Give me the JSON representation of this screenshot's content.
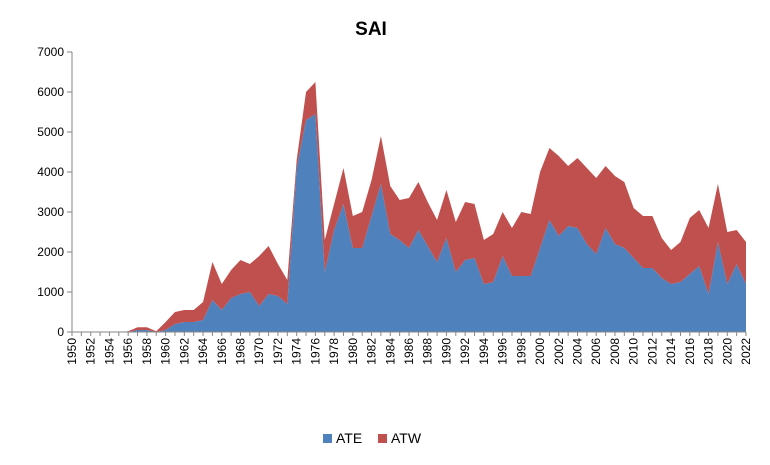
{
  "chart_data": {
    "type": "area",
    "stacked": true,
    "title": "SAI",
    "xlabel": "",
    "ylabel": "",
    "ylim": [
      0,
      7000
    ],
    "yticks": [
      0,
      1000,
      2000,
      3000,
      4000,
      5000,
      6000,
      7000
    ],
    "x": [
      1950,
      1951,
      1952,
      1953,
      1954,
      1955,
      1956,
      1957,
      1958,
      1959,
      1960,
      1961,
      1962,
      1963,
      1964,
      1965,
      1966,
      1967,
      1968,
      1969,
      1970,
      1971,
      1972,
      1973,
      1974,
      1975,
      1976,
      1977,
      1978,
      1979,
      1980,
      1981,
      1982,
      1983,
      1984,
      1985,
      1986,
      1987,
      1988,
      1989,
      1990,
      1991,
      1992,
      1993,
      1994,
      1995,
      1996,
      1997,
      1998,
      1999,
      2000,
      2001,
      2002,
      2003,
      2004,
      2005,
      2006,
      2007,
      2008,
      2009,
      2010,
      2011,
      2012,
      2013,
      2014,
      2015,
      2016,
      2017,
      2018,
      2019,
      2020,
      2021,
      2022
    ],
    "xtick_labels": [
      "1950",
      "1952",
      "1954",
      "1956",
      "1958",
      "1960",
      "1962",
      "1964",
      "1966",
      "1968",
      "1970",
      "1972",
      "1974",
      "1976",
      "1978",
      "1980",
      "1982",
      "1984",
      "1986",
      "1988",
      "1990",
      "1992",
      "1994",
      "1996",
      "1998",
      "2000",
      "2002",
      "2004",
      "2006",
      "2008",
      "2010",
      "2012",
      "2014",
      "2016",
      "2018",
      "2020",
      "2022"
    ],
    "grid": false,
    "legend_position": "bottom",
    "series": [
      {
        "name": "ATE",
        "color": "#4f81bd",
        "values": [
          0,
          0,
          0,
          0,
          0,
          0,
          0,
          50,
          50,
          0,
          50,
          200,
          250,
          250,
          300,
          800,
          550,
          850,
          950,
          1000,
          650,
          950,
          900,
          700,
          4100,
          5300,
          5450,
          1500,
          2550,
          3200,
          2100,
          2100,
          2900,
          3700,
          2450,
          2300,
          2100,
          2550,
          2150,
          1750,
          2350,
          1500,
          1800,
          1850,
          1200,
          1250,
          1900,
          1400,
          1400,
          1400,
          2100,
          2800,
          2400,
          2650,
          2600,
          2200,
          1950,
          2600,
          2200,
          2100,
          1850,
          1600,
          1600,
          1350,
          1200,
          1250,
          1450,
          1650,
          950,
          2250,
          1200,
          1700,
          1200
        ]
      },
      {
        "name": "ATW",
        "color": "#c0504d",
        "values": [
          0,
          0,
          0,
          0,
          0,
          0,
          20,
          70,
          70,
          20,
          200,
          300,
          300,
          300,
          450,
          950,
          650,
          700,
          850,
          700,
          1250,
          1200,
          800,
          600,
          200,
          700,
          800,
          800,
          650,
          900,
          800,
          900,
          900,
          1200,
          1200,
          1000,
          1250,
          1200,
          1100,
          1050,
          1200,
          1250,
          1450,
          1350,
          1100,
          1200,
          1100,
          1200,
          1600,
          1550,
          1900,
          1800,
          2000,
          1500,
          1750,
          1900,
          1900,
          1550,
          1700,
          1650,
          1250,
          1300,
          1300,
          1000,
          850,
          1000,
          1400,
          1400,
          1650,
          1450,
          1300,
          850,
          1050
        ]
      }
    ]
  }
}
